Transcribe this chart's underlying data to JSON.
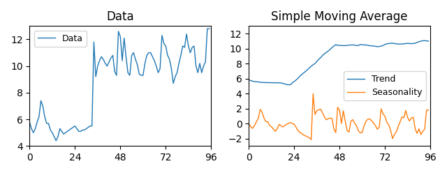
{
  "title_left": "Data",
  "title_right": "Simple Moving Average",
  "legend_left": "Data",
  "legend_right_trend": "Trend",
  "legend_right_seasonality": "Seasonality",
  "line_color_blue": "#1f77b4",
  "line_color_orange": "#ff7f0e",
  "xlim": [
    0,
    96
  ],
  "xticks": [
    0,
    24,
    48,
    72,
    96
  ],
  "ylim_left": [
    4,
    13
  ],
  "ylim_right": [
    -3,
    13
  ],
  "yticks_left": [
    4,
    6,
    8,
    10,
    12
  ],
  "yticks_right": [
    -2,
    0,
    2,
    4,
    6,
    8,
    10,
    12
  ],
  "figsize": [
    6.4,
    2.48
  ],
  "dpi": 100
}
